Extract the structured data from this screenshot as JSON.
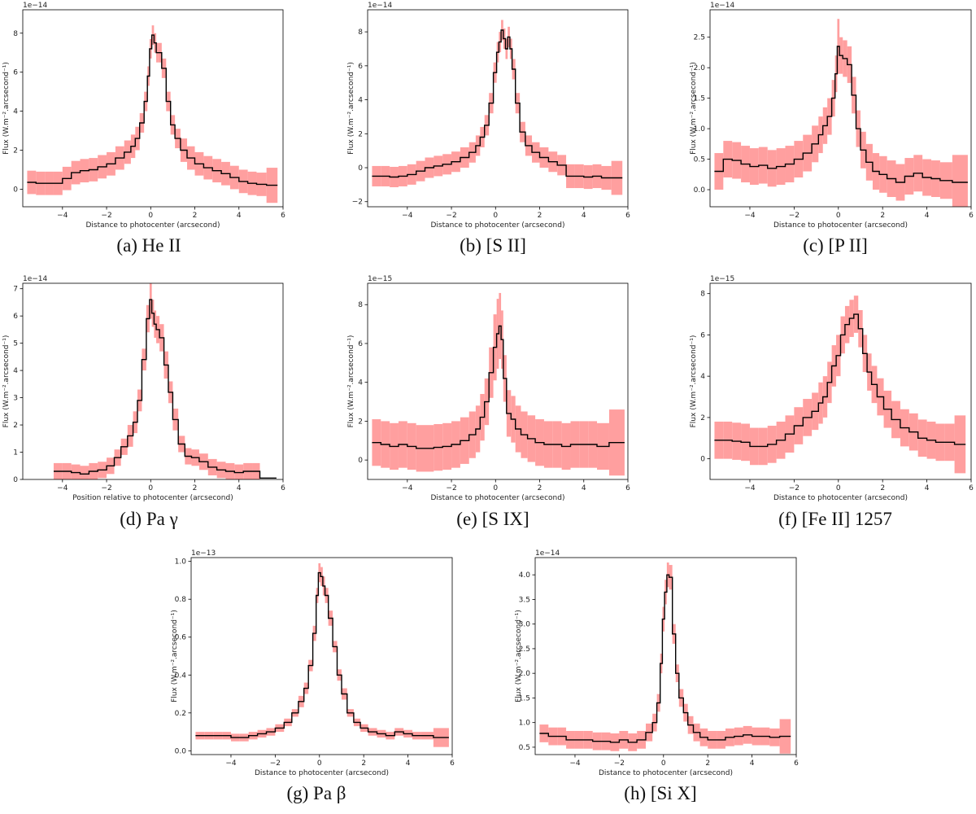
{
  "chart_data": [
    {
      "id": "a",
      "type": "line",
      "style": "step-with-error-band",
      "caption": "(a)  He II",
      "xlabel": "Distance to photocenter (arcsecond)",
      "ylabel": "Flux (W.m⁻².arcsecond⁻¹)",
      "offset_text": "1e−14",
      "xlim": [
        -5.8,
        6.0
      ],
      "ylim": [
        -0.9,
        9.2
      ],
      "xticks": [
        -4,
        -2,
        0,
        2,
        4,
        6
      ],
      "yticks": [
        0,
        2,
        4,
        6,
        8
      ],
      "x": [
        -5.4,
        -5.0,
        -4.6,
        -4.2,
        -3.8,
        -3.4,
        -3.0,
        -2.6,
        -2.2,
        -1.8,
        -1.4,
        -1.0,
        -0.8,
        -0.6,
        -0.4,
        -0.2,
        -0.1,
        0.0,
        0.1,
        0.2,
        0.3,
        0.4,
        0.6,
        0.8,
        1.0,
        1.2,
        1.5,
        1.8,
        2.2,
        2.6,
        3.0,
        3.4,
        3.8,
        4.2,
        4.6,
        5.0,
        5.5
      ],
      "y": [
        0.35,
        0.3,
        0.3,
        0.3,
        0.55,
        0.85,
        0.95,
        1.0,
        1.15,
        1.3,
        1.6,
        1.9,
        2.2,
        2.6,
        3.4,
        4.5,
        5.8,
        7.2,
        7.9,
        7.5,
        7.0,
        7.0,
        6.2,
        4.5,
        3.3,
        2.6,
        2.0,
        1.6,
        1.3,
        1.1,
        0.95,
        0.8,
        0.6,
        0.4,
        0.3,
        0.25,
        0.2
      ],
      "err": [
        0.6,
        0.6,
        0.6,
        0.6,
        0.6,
        0.6,
        0.6,
        0.6,
        0.6,
        0.6,
        0.6,
        0.6,
        0.6,
        0.6,
        0.5,
        0.5,
        0.5,
        0.5,
        0.5,
        0.5,
        0.5,
        0.5,
        0.5,
        0.5,
        0.5,
        0.5,
        0.6,
        0.6,
        0.6,
        0.6,
        0.6,
        0.6,
        0.6,
        0.6,
        0.6,
        0.6,
        0.9
      ]
    },
    {
      "id": "b",
      "type": "line",
      "style": "step-with-error-band",
      "caption": "(b)  [S II]",
      "xlabel": "Distance to photocenter (arcsecond)",
      "ylabel": "Flux (W.m⁻².arcsecond⁻¹)",
      "offset_text": "1e−14",
      "xlim": [
        -5.8,
        6.0
      ],
      "ylim": [
        -2.3,
        9.3
      ],
      "xticks": [
        -4,
        -2,
        0,
        2,
        4,
        6
      ],
      "yticks": [
        -2,
        0,
        2,
        4,
        6,
        8
      ],
      "x": [
        -5.4,
        -5.0,
        -4.6,
        -4.2,
        -3.8,
        -3.4,
        -3.0,
        -2.6,
        -2.2,
        -1.8,
        -1.4,
        -1.0,
        -0.8,
        -0.6,
        -0.4,
        -0.2,
        0.0,
        0.1,
        0.2,
        0.3,
        0.4,
        0.5,
        0.6,
        0.7,
        0.8,
        1.0,
        1.2,
        1.5,
        1.8,
        2.2,
        2.6,
        3.0,
        3.4,
        3.8,
        4.2,
        4.6,
        5.0,
        5.5
      ],
      "y": [
        -0.5,
        -0.5,
        -0.55,
        -0.5,
        -0.4,
        -0.2,
        0.0,
        0.1,
        0.2,
        0.35,
        0.6,
        0.9,
        1.3,
        1.8,
        2.5,
        3.8,
        5.6,
        6.8,
        7.4,
        8.1,
        7.6,
        7.0,
        7.7,
        7.0,
        5.8,
        3.8,
        2.1,
        1.3,
        0.9,
        0.6,
        0.35,
        0.15,
        -0.5,
        -0.5,
        -0.55,
        -0.5,
        -0.6,
        -0.6
      ],
      "err": [
        0.6,
        0.6,
        0.6,
        0.6,
        0.6,
        0.6,
        0.6,
        0.6,
        0.6,
        0.6,
        0.6,
        0.6,
        0.6,
        0.6,
        0.6,
        0.6,
        0.6,
        0.6,
        0.6,
        0.6,
        0.6,
        0.6,
        0.6,
        0.6,
        0.6,
        0.6,
        0.6,
        0.6,
        0.6,
        0.6,
        0.6,
        0.6,
        0.7,
        0.7,
        0.7,
        0.7,
        0.7,
        1.0
      ]
    },
    {
      "id": "c",
      "type": "line",
      "style": "step-with-error-band",
      "caption": "(c)  [P II]",
      "xlabel": "Distance to photocenter (arcsecond)",
      "ylabel": "Flux (W.m⁻².arcsecond⁻¹)",
      "offset_text": "1e−14",
      "xlim": [
        -5.8,
        6.0
      ],
      "ylim": [
        -0.28,
        2.95
      ],
      "xticks": [
        -4,
        -2,
        0,
        2,
        4,
        6
      ],
      "yticks": [
        0.0,
        0.5,
        1.0,
        1.5,
        2.0,
        2.5
      ],
      "x": [
        -5.4,
        -5.0,
        -4.6,
        -4.2,
        -3.8,
        -3.4,
        -3.0,
        -2.6,
        -2.2,
        -1.8,
        -1.4,
        -1.0,
        -0.8,
        -0.6,
        -0.4,
        -0.2,
        -0.1,
        0.0,
        0.1,
        0.3,
        0.5,
        0.7,
        0.9,
        1.1,
        1.4,
        1.7,
        2.0,
        2.4,
        2.8,
        3.2,
        3.6,
        4.0,
        4.4,
        4.8,
        5.5
      ],
      "y": [
        0.3,
        0.5,
        0.48,
        0.42,
        0.38,
        0.4,
        0.35,
        0.38,
        0.42,
        0.5,
        0.6,
        0.75,
        0.9,
        1.05,
        1.2,
        1.5,
        1.9,
        2.35,
        2.2,
        2.15,
        2.05,
        1.55,
        1.0,
        0.65,
        0.45,
        0.3,
        0.25,
        0.18,
        0.12,
        0.22,
        0.27,
        0.2,
        0.18,
        0.15,
        0.12
      ],
      "err": [
        0.3,
        0.3,
        0.3,
        0.3,
        0.3,
        0.3,
        0.3,
        0.3,
        0.3,
        0.3,
        0.3,
        0.3,
        0.3,
        0.3,
        0.3,
        0.3,
        0.3,
        0.45,
        0.3,
        0.3,
        0.3,
        0.3,
        0.3,
        0.3,
        0.3,
        0.3,
        0.3,
        0.3,
        0.3,
        0.3,
        0.3,
        0.3,
        0.3,
        0.3,
        0.45
      ]
    },
    {
      "id": "d",
      "type": "line",
      "style": "step-with-error-band",
      "caption": "(d)  Pa γ",
      "xlabel": "Position relative to photocenter (arcsecond)",
      "ylabel": "Flux (W.m⁻².arcsecond⁻¹)",
      "offset_text": "1e−14",
      "xlim": [
        -5.8,
        6.0
      ],
      "ylim": [
        0,
        7.2
      ],
      "xticks": [
        -4,
        -2,
        0,
        2,
        4,
        6
      ],
      "yticks": [
        0,
        1,
        2,
        3,
        4,
        5,
        6,
        7
      ],
      "x": [
        -4.2,
        -3.8,
        -3.4,
        -3.0,
        -2.6,
        -2.2,
        -1.8,
        -1.5,
        -1.2,
        -0.9,
        -0.7,
        -0.5,
        -0.3,
        -0.1,
        0.0,
        0.1,
        0.2,
        0.3,
        0.5,
        0.7,
        0.9,
        1.1,
        1.4,
        1.7,
        2.0,
        2.4,
        2.8,
        3.2,
        3.6,
        4.0,
        4.4,
        4.8,
        5.1,
        5.5
      ],
      "y": [
        0.3,
        0.3,
        0.25,
        0.2,
        0.3,
        0.35,
        0.5,
        0.8,
        1.2,
        1.6,
        2.1,
        2.9,
        4.4,
        5.9,
        6.6,
        6.1,
        5.7,
        5.5,
        5.2,
        4.2,
        3.2,
        2.2,
        1.3,
        0.85,
        0.8,
        0.65,
        0.45,
        0.35,
        0.3,
        0.25,
        0.3,
        0.3,
        0.05,
        0.05
      ],
      "err": [
        0.3,
        0.3,
        0.3,
        0.3,
        0.3,
        0.3,
        0.3,
        0.3,
        0.3,
        0.4,
        0.4,
        0.4,
        0.4,
        0.5,
        0.7,
        0.5,
        0.5,
        0.5,
        0.5,
        0.5,
        0.4,
        0.4,
        0.3,
        0.3,
        0.3,
        0.3,
        0.3,
        0.3,
        0.3,
        0.3,
        0.3,
        0.3,
        0.0,
        0.0
      ]
    },
    {
      "id": "e",
      "type": "line",
      "style": "step-with-error-band",
      "caption": "(e)  [S IX]",
      "xlabel": "Distance to photocenter (arcsecond)",
      "ylabel": "Flux (W.m⁻².arcsecond⁻¹)",
      "offset_text": "1e−15",
      "xlim": [
        -5.8,
        6.0
      ],
      "ylim": [
        -1.0,
        9.1
      ],
      "xticks": [
        -4,
        -2,
        0,
        2,
        4,
        6
      ],
      "yticks": [
        0,
        2,
        4,
        6,
        8
      ],
      "x": [
        -5.4,
        -5.0,
        -4.6,
        -4.2,
        -3.8,
        -3.4,
        -3.0,
        -2.6,
        -2.2,
        -1.8,
        -1.4,
        -1.0,
        -0.8,
        -0.6,
        -0.4,
        -0.2,
        0.0,
        0.1,
        0.2,
        0.3,
        0.4,
        0.6,
        0.8,
        1.0,
        1.3,
        1.6,
        2.0,
        2.4,
        2.8,
        3.2,
        3.6,
        4.0,
        4.4,
        4.8,
        5.5
      ],
      "y": [
        0.9,
        0.8,
        0.7,
        0.8,
        0.7,
        0.6,
        0.6,
        0.65,
        0.7,
        0.8,
        1.0,
        1.3,
        1.6,
        2.2,
        3.0,
        4.5,
        5.8,
        6.5,
        6.9,
        6.2,
        4.2,
        2.4,
        2.1,
        1.6,
        1.3,
        1.1,
        0.9,
        0.8,
        0.8,
        0.7,
        0.8,
        0.8,
        0.8,
        0.7,
        0.9
      ],
      "err": [
        1.2,
        1.2,
        1.2,
        1.2,
        1.2,
        1.2,
        1.2,
        1.2,
        1.2,
        1.2,
        1.2,
        1.2,
        1.2,
        1.2,
        1.2,
        1.3,
        1.7,
        1.8,
        1.7,
        1.5,
        1.2,
        1.2,
        1.2,
        1.2,
        1.2,
        1.2,
        1.2,
        1.2,
        1.2,
        1.2,
        1.2,
        1.2,
        1.2,
        1.2,
        1.7
      ]
    },
    {
      "id": "f",
      "type": "line",
      "style": "step-with-error-band",
      "caption": "(f)  [Fe II] 1257",
      "xlabel": "Distance to photocenter (arcsecond)",
      "ylabel": "Flux (W.m⁻².arcsecond⁻¹)",
      "offset_text": "1e−15",
      "xlim": [
        -5.8,
        6.0
      ],
      "ylim": [
        -1.0,
        8.5
      ],
      "xticks": [
        -4,
        -2,
        0,
        2,
        4,
        6
      ],
      "yticks": [
        0,
        2,
        4,
        6,
        8
      ],
      "x": [
        -5.4,
        -5.0,
        -4.6,
        -4.2,
        -3.8,
        -3.4,
        -3.0,
        -2.6,
        -2.2,
        -1.8,
        -1.4,
        -1.0,
        -0.8,
        -0.6,
        -0.4,
        -0.2,
        0.0,
        0.2,
        0.4,
        0.6,
        0.8,
        1.0,
        1.2,
        1.4,
        1.6,
        1.9,
        2.2,
        2.6,
        3.0,
        3.4,
        3.8,
        4.2,
        4.6,
        5.0,
        5.5
      ],
      "y": [
        0.9,
        0.9,
        0.85,
        0.8,
        0.6,
        0.6,
        0.7,
        0.9,
        1.2,
        1.6,
        2.0,
        2.3,
        2.7,
        3.0,
        3.7,
        4.5,
        5.0,
        6.0,
        6.5,
        6.8,
        7.0,
        6.3,
        5.1,
        4.2,
        3.6,
        3.0,
        2.4,
        1.9,
        1.5,
        1.3,
        1.0,
        0.9,
        0.8,
        0.8,
        0.7
      ],
      "err": [
        0.9,
        0.9,
        0.9,
        0.9,
        0.9,
        0.9,
        0.9,
        0.9,
        0.9,
        0.9,
        0.9,
        0.9,
        1.0,
        1.0,
        1.0,
        1.0,
        1.0,
        0.9,
        0.9,
        0.9,
        0.9,
        0.9,
        0.9,
        0.9,
        0.9,
        0.9,
        0.9,
        0.9,
        0.9,
        0.9,
        0.9,
        0.9,
        0.9,
        0.9,
        1.4
      ]
    },
    {
      "id": "g",
      "type": "line",
      "style": "step-with-error-band",
      "caption": "(g)  Pa β",
      "xlabel": "Distance to photocenter (arcsecond)",
      "ylabel": "Flux (W.m⁻².arcsecond⁻¹)",
      "offset_text": "1e−13",
      "xlim": [
        -5.8,
        6.0
      ],
      "ylim": [
        -0.02,
        1.02
      ],
      "xticks": [
        -4,
        -2,
        0,
        2,
        4,
        6
      ],
      "yticks": [
        0.0,
        0.2,
        0.4,
        0.6,
        0.8,
        1.0
      ],
      "x": [
        -5.4,
        -5.0,
        -4.6,
        -4.2,
        -3.8,
        -3.4,
        -3.0,
        -2.6,
        -2.2,
        -1.8,
        -1.4,
        -1.1,
        -0.8,
        -0.6,
        -0.4,
        -0.2,
        -0.1,
        0.0,
        0.1,
        0.2,
        0.3,
        0.5,
        0.7,
        0.9,
        1.1,
        1.4,
        1.7,
        2.0,
        2.4,
        2.8,
        3.2,
        3.6,
        4.0,
        4.4,
        4.8,
        5.5
      ],
      "y": [
        0.08,
        0.08,
        0.08,
        0.08,
        0.07,
        0.07,
        0.08,
        0.09,
        0.1,
        0.12,
        0.15,
        0.2,
        0.26,
        0.33,
        0.45,
        0.62,
        0.82,
        0.94,
        0.92,
        0.87,
        0.82,
        0.7,
        0.55,
        0.4,
        0.3,
        0.2,
        0.15,
        0.12,
        0.1,
        0.09,
        0.08,
        0.1,
        0.09,
        0.08,
        0.08,
        0.07
      ],
      "err": [
        0.02,
        0.02,
        0.02,
        0.02,
        0.02,
        0.02,
        0.02,
        0.02,
        0.02,
        0.02,
        0.02,
        0.02,
        0.03,
        0.03,
        0.03,
        0.04,
        0.04,
        0.05,
        0.05,
        0.05,
        0.04,
        0.04,
        0.03,
        0.03,
        0.03,
        0.02,
        0.02,
        0.02,
        0.02,
        0.02,
        0.02,
        0.02,
        0.02,
        0.02,
        0.02,
        0.05
      ]
    },
    {
      "id": "h",
      "type": "line",
      "style": "step-with-error-band",
      "caption": "(h)  [Si X]",
      "xlabel": "Distance to photocenter (arcsecond)",
      "ylabel": "Flux (W.m⁻².arcsecond⁻¹)",
      "offset_text": "1e−14",
      "xlim": [
        -5.8,
        6.0
      ],
      "ylim": [
        0.35,
        4.35
      ],
      "xticks": [
        -4,
        -2,
        0,
        2,
        4,
        6
      ],
      "yticks": [
        0.5,
        1.0,
        1.5,
        2.0,
        2.5,
        3.0,
        3.5,
        4.0
      ],
      "x": [
        -5.4,
        -5.0,
        -4.6,
        -4.2,
        -3.8,
        -3.4,
        -3.0,
        -2.6,
        -2.2,
        -1.8,
        -1.4,
        -1.0,
        -0.6,
        -0.4,
        -0.2,
        -0.1,
        0.0,
        0.1,
        0.2,
        0.3,
        0.5,
        0.6,
        0.8,
        1.0,
        1.2,
        1.5,
        1.8,
        2.2,
        2.6,
        3.0,
        3.4,
        3.8,
        4.2,
        4.6,
        5.0,
        5.5
      ],
      "y": [
        0.78,
        0.72,
        0.72,
        0.65,
        0.65,
        0.65,
        0.62,
        0.62,
        0.6,
        0.65,
        0.6,
        0.65,
        0.8,
        1.0,
        1.4,
        2.2,
        3.1,
        3.65,
        4.0,
        3.95,
        2.8,
        2.0,
        1.5,
        1.2,
        0.95,
        0.8,
        0.7,
        0.65,
        0.65,
        0.7,
        0.72,
        0.75,
        0.72,
        0.72,
        0.7,
        0.72
      ],
      "err": [
        0.18,
        0.18,
        0.18,
        0.18,
        0.18,
        0.18,
        0.18,
        0.18,
        0.18,
        0.18,
        0.18,
        0.18,
        0.18,
        0.18,
        0.18,
        0.2,
        0.25,
        0.25,
        0.25,
        0.25,
        0.2,
        0.18,
        0.18,
        0.18,
        0.18,
        0.18,
        0.18,
        0.18,
        0.18,
        0.18,
        0.18,
        0.18,
        0.18,
        0.18,
        0.18,
        0.35
      ]
    }
  ],
  "colors": {
    "band": "#ff9f9f",
    "line": "#000000",
    "axis": "#000000"
  }
}
